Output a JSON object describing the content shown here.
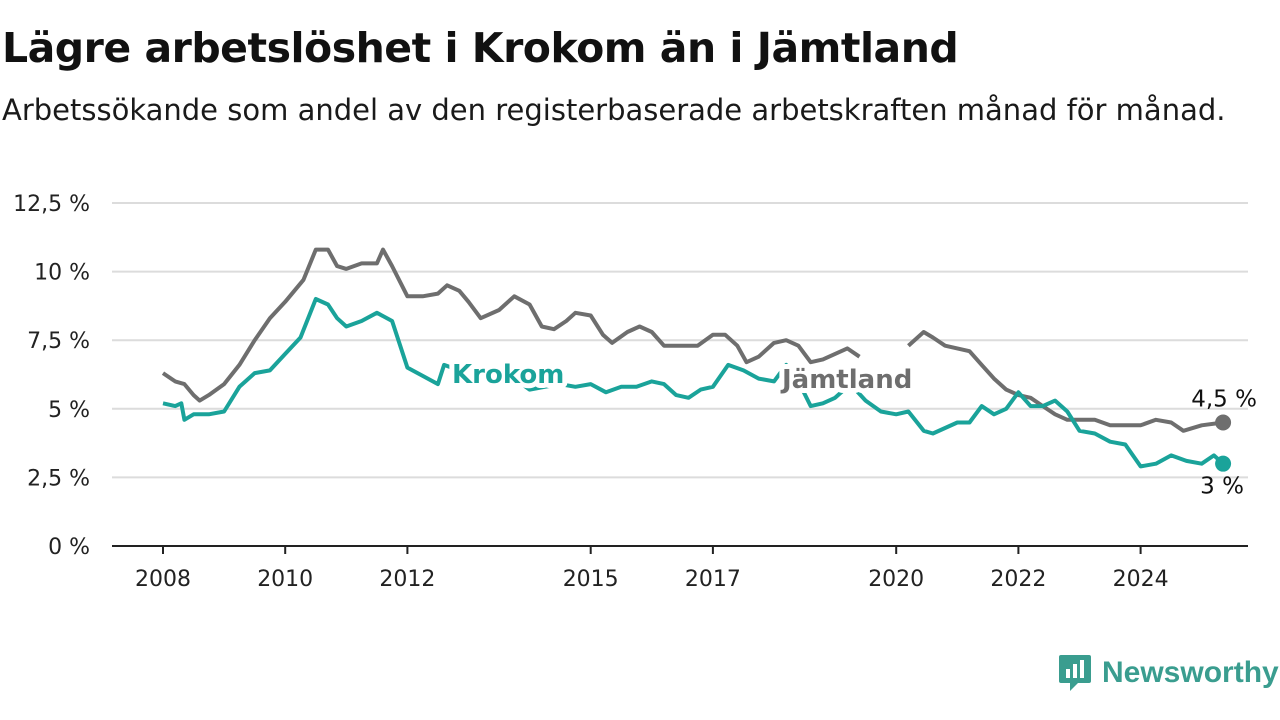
{
  "title": "Lägre arbetslöshet i Krokom än i Jämtland",
  "subtitle": "Arbetssökande som andel av den registerbaserade arbetskraften månad för månad.",
  "logo_text": "Newsworthy",
  "colors": {
    "krokom": "#1aa39a",
    "jamtland": "#6e6e6e",
    "grid": "#dcdcdc",
    "axis": "#222222"
  },
  "chart_data": {
    "type": "line",
    "title": "Lägre arbetslöshet i Krokom än i Jämtland",
    "xlabel": "",
    "ylabel": "",
    "ylim": [
      0,
      12.5
    ],
    "y_ticks": [
      0,
      2.5,
      5,
      7.5,
      10,
      12.5
    ],
    "y_tick_labels": [
      "0 %",
      "2,5 %",
      "5 %",
      "7,5 %",
      "10 %",
      "12,5 %"
    ],
    "x_ticks": [
      2008,
      2010,
      2012,
      2015,
      2017,
      2020,
      2022,
      2024
    ],
    "x_tick_labels": [
      "2008",
      "2010",
      "2012",
      "2015",
      "2017",
      "2020",
      "2022",
      "2024"
    ],
    "grid": true,
    "series": [
      {
        "name": "Jämtland",
        "color": "#6e6e6e",
        "end_label": "4,5 %",
        "points": [
          [
            2008.0,
            6.3
          ],
          [
            2008.2,
            6.0
          ],
          [
            2008.35,
            5.9
          ],
          [
            2008.5,
            5.5
          ],
          [
            2008.6,
            5.3
          ],
          [
            2008.75,
            5.5
          ],
          [
            2009.0,
            5.9
          ],
          [
            2009.25,
            6.6
          ],
          [
            2009.5,
            7.5
          ],
          [
            2009.75,
            8.3
          ],
          [
            2010.0,
            8.9
          ],
          [
            2010.3,
            9.7
          ],
          [
            2010.5,
            10.8
          ],
          [
            2010.7,
            10.8
          ],
          [
            2010.85,
            10.2
          ],
          [
            2011.0,
            10.1
          ],
          [
            2011.25,
            10.3
          ],
          [
            2011.5,
            10.3
          ],
          [
            2011.6,
            10.8
          ],
          [
            2011.75,
            10.2
          ],
          [
            2012.0,
            9.1
          ],
          [
            2012.25,
            9.1
          ],
          [
            2012.5,
            9.2
          ],
          [
            2012.65,
            9.5
          ],
          [
            2012.85,
            9.3
          ],
          [
            2013.0,
            8.9
          ],
          [
            2013.2,
            8.3
          ],
          [
            2013.5,
            8.6
          ],
          [
            2013.75,
            9.1
          ],
          [
            2014.0,
            8.8
          ],
          [
            2014.2,
            8.0
          ],
          [
            2014.4,
            7.9
          ],
          [
            2014.6,
            8.2
          ],
          [
            2014.75,
            8.5
          ],
          [
            2015.0,
            8.4
          ],
          [
            2015.2,
            7.7
          ],
          [
            2015.35,
            7.4
          ],
          [
            2015.6,
            7.8
          ],
          [
            2015.8,
            8.0
          ],
          [
            2016.0,
            7.8
          ],
          [
            2016.2,
            7.3
          ],
          [
            2016.5,
            7.3
          ],
          [
            2016.75,
            7.3
          ],
          [
            2017.0,
            7.7
          ],
          [
            2017.2,
            7.7
          ],
          [
            2017.4,
            7.3
          ],
          [
            2017.55,
            6.7
          ],
          [
            2017.75,
            6.9
          ],
          [
            2018.0,
            7.4
          ],
          [
            2018.2,
            7.5
          ],
          [
            2018.4,
            7.3
          ],
          [
            2018.6,
            6.7
          ],
          [
            2018.8,
            6.8
          ],
          [
            2019.0,
            7.0
          ],
          [
            2019.2,
            7.2
          ],
          [
            2019.4,
            6.9
          ]
        ],
        "points_after_gap": [
          [
            2020.2,
            7.3
          ],
          [
            2020.45,
            7.8
          ],
          [
            2020.6,
            7.6
          ],
          [
            2020.8,
            7.3
          ],
          [
            2021.0,
            7.2
          ],
          [
            2021.2,
            7.1
          ],
          [
            2021.4,
            6.6
          ],
          [
            2021.6,
            6.1
          ],
          [
            2021.8,
            5.7
          ],
          [
            2022.0,
            5.5
          ],
          [
            2022.2,
            5.4
          ],
          [
            2022.4,
            5.1
          ],
          [
            2022.6,
            4.8
          ],
          [
            2022.8,
            4.6
          ],
          [
            2023.0,
            4.6
          ],
          [
            2023.25,
            4.6
          ],
          [
            2023.5,
            4.4
          ],
          [
            2023.75,
            4.4
          ],
          [
            2024.0,
            4.4
          ],
          [
            2024.25,
            4.6
          ],
          [
            2024.5,
            4.5
          ],
          [
            2024.7,
            4.2
          ],
          [
            2025.0,
            4.4
          ],
          [
            2025.35,
            4.5
          ]
        ]
      },
      {
        "name": "Krokom",
        "color": "#1aa39a",
        "end_label": "3 %",
        "points": [
          [
            2008.0,
            5.2
          ],
          [
            2008.2,
            5.1
          ],
          [
            2008.3,
            5.2
          ],
          [
            2008.35,
            4.6
          ],
          [
            2008.5,
            4.8
          ],
          [
            2008.75,
            4.8
          ],
          [
            2009.0,
            4.9
          ],
          [
            2009.25,
            5.8
          ],
          [
            2009.5,
            6.3
          ],
          [
            2009.75,
            6.4
          ],
          [
            2010.0,
            7.0
          ],
          [
            2010.25,
            7.6
          ],
          [
            2010.5,
            9.0
          ],
          [
            2010.7,
            8.8
          ],
          [
            2010.85,
            8.3
          ],
          [
            2011.0,
            8.0
          ],
          [
            2011.25,
            8.2
          ],
          [
            2011.5,
            8.5
          ],
          [
            2011.75,
            8.2
          ],
          [
            2012.0,
            6.5
          ],
          [
            2012.25,
            6.2
          ],
          [
            2012.5,
            5.9
          ],
          [
            2012.6,
            6.6
          ],
          [
            2012.85,
            6.4
          ],
          [
            2013.0,
            6.3
          ],
          [
            2013.25,
            6.0
          ],
          [
            2013.5,
            6.1
          ],
          [
            2013.75,
            6.1
          ],
          [
            2014.0,
            5.7
          ],
          [
            2014.25,
            5.8
          ],
          [
            2014.5,
            5.9
          ],
          [
            2014.75,
            5.8
          ],
          [
            2015.0,
            5.9
          ],
          [
            2015.25,
            5.6
          ],
          [
            2015.5,
            5.8
          ],
          [
            2015.75,
            5.8
          ],
          [
            2016.0,
            6.0
          ],
          [
            2016.2,
            5.9
          ],
          [
            2016.4,
            5.5
          ],
          [
            2016.6,
            5.4
          ],
          [
            2016.8,
            5.7
          ],
          [
            2017.0,
            5.8
          ],
          [
            2017.25,
            6.6
          ],
          [
            2017.5,
            6.4
          ],
          [
            2017.75,
            6.1
          ],
          [
            2018.0,
            6.0
          ],
          [
            2018.2,
            6.6
          ],
          [
            2018.4,
            6.0
          ],
          [
            2018.6,
            5.1
          ],
          [
            2018.8,
            5.2
          ],
          [
            2019.0,
            5.4
          ],
          [
            2019.25,
            5.9
          ],
          [
            2019.5,
            5.3
          ],
          [
            2019.75,
            4.9
          ],
          [
            2020.0,
            4.8
          ],
          [
            2020.2,
            4.9
          ],
          [
            2020.45,
            4.2
          ],
          [
            2020.6,
            4.1
          ],
          [
            2020.8,
            4.3
          ],
          [
            2021.0,
            4.5
          ],
          [
            2021.2,
            4.5
          ],
          [
            2021.4,
            5.1
          ],
          [
            2021.6,
            4.8
          ],
          [
            2021.8,
            5.0
          ],
          [
            2022.0,
            5.6
          ],
          [
            2022.2,
            5.1
          ],
          [
            2022.4,
            5.1
          ],
          [
            2022.6,
            5.3
          ],
          [
            2022.8,
            4.9
          ],
          [
            2023.0,
            4.2
          ],
          [
            2023.25,
            4.1
          ],
          [
            2023.5,
            3.8
          ],
          [
            2023.75,
            3.7
          ],
          [
            2024.0,
            2.9
          ],
          [
            2024.25,
            3.0
          ],
          [
            2024.5,
            3.3
          ],
          [
            2024.75,
            3.1
          ],
          [
            2025.0,
            3.0
          ],
          [
            2025.2,
            3.3
          ],
          [
            2025.35,
            3.0
          ]
        ]
      }
    ]
  }
}
